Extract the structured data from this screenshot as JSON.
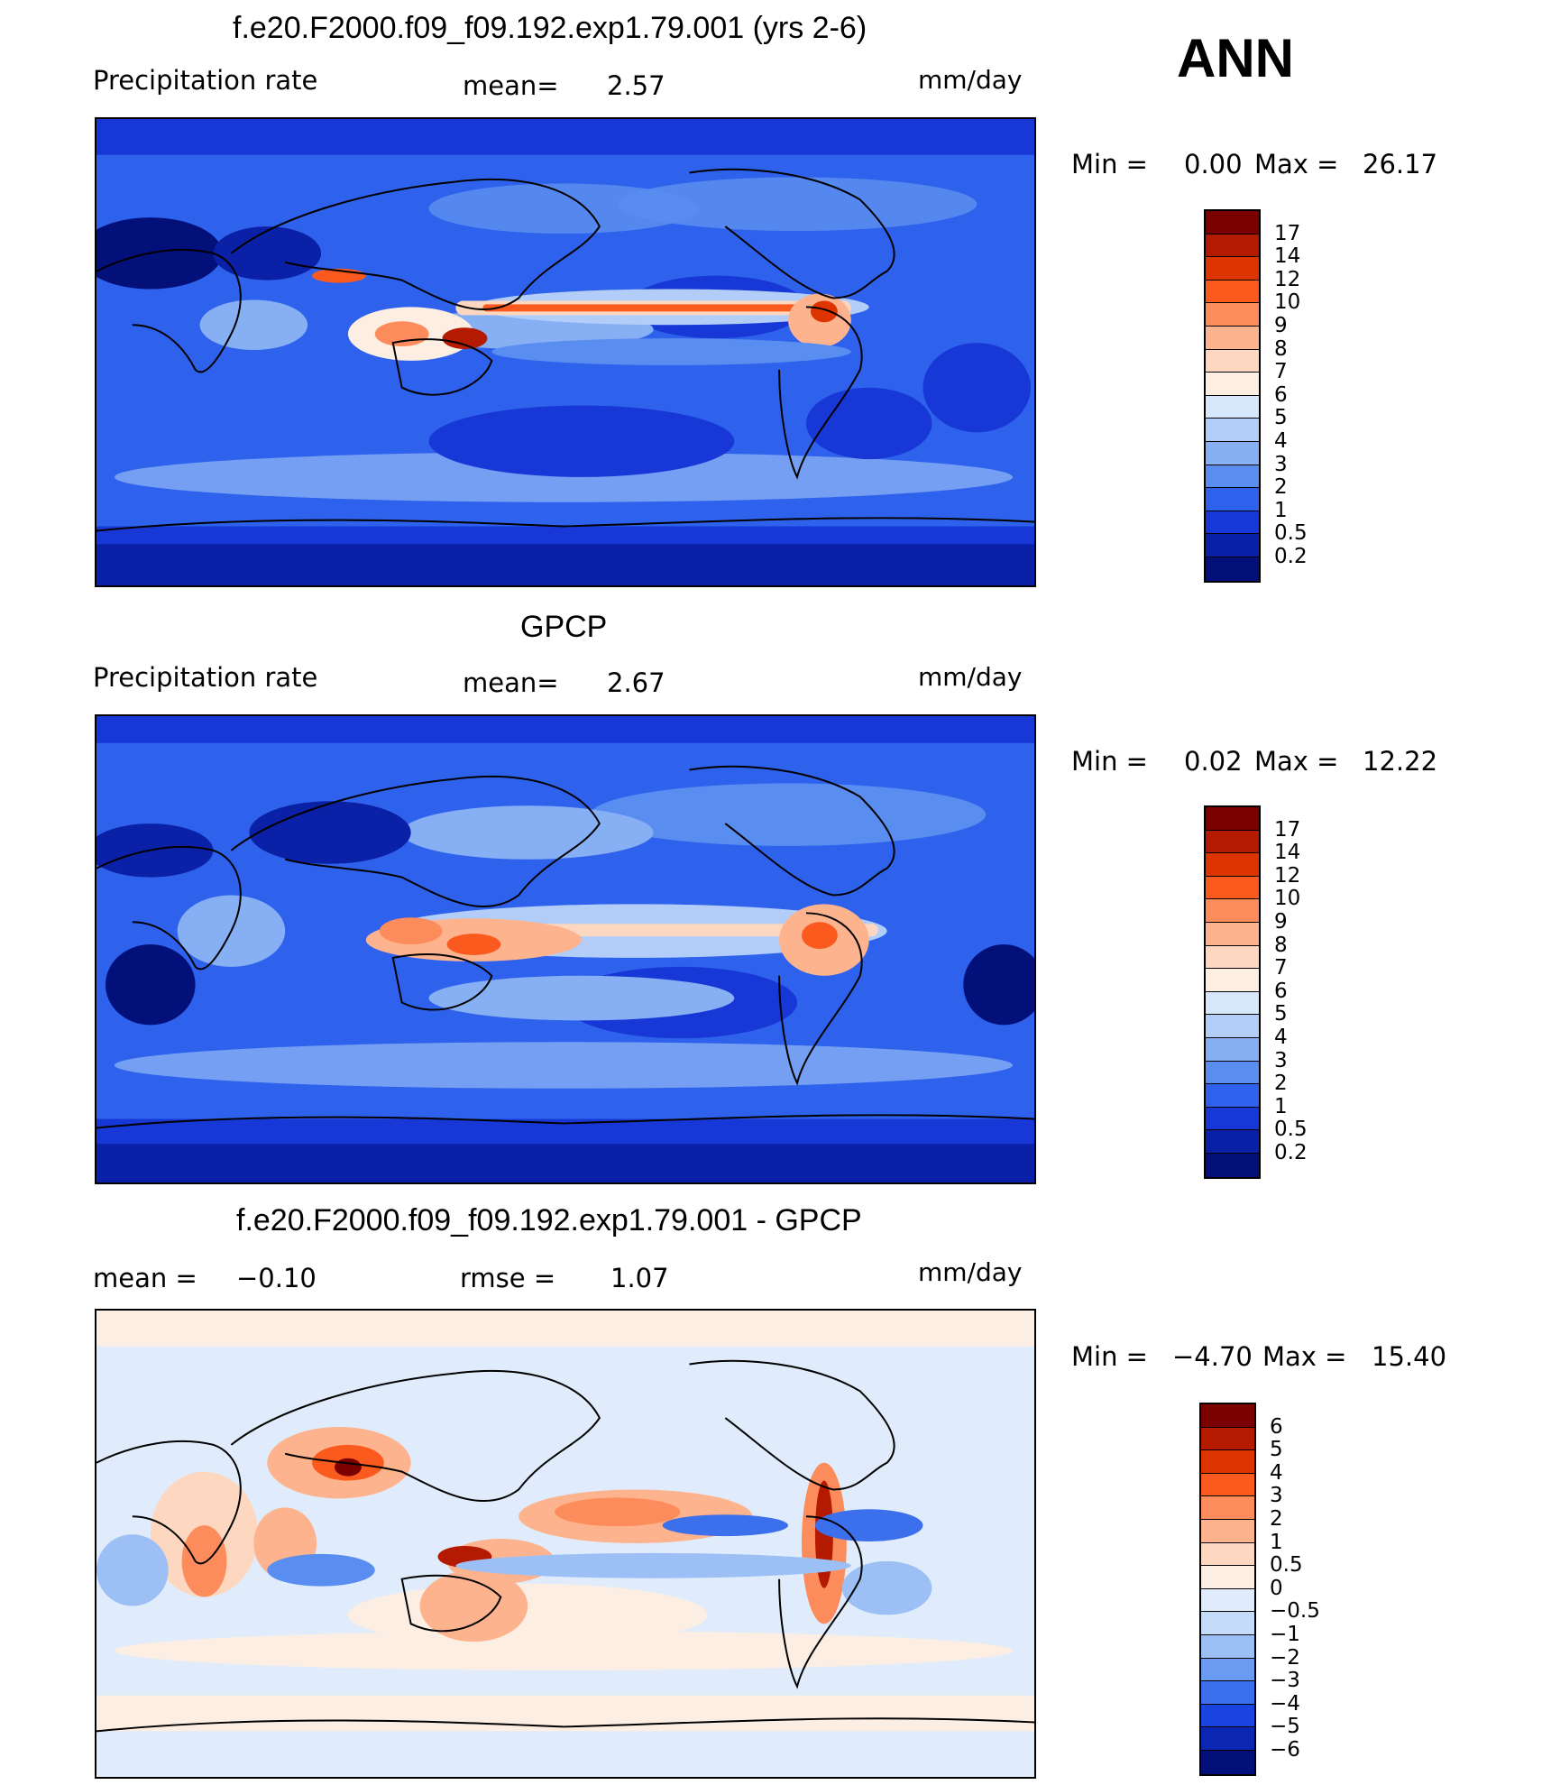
{
  "season": "ANN",
  "panels": [
    {
      "title": "f.e20.F2000.f09_f09.192.exp1.79.001 (yrs 2-6)",
      "left_label": "Precipitation  rate",
      "center_label": "mean=",
      "center_value": "2.57",
      "units": "mm/day",
      "min_label": "Min  =",
      "min_value": "0.00",
      "max_label": "Max  =",
      "max_value": "26.17",
      "levels": [
        "17",
        "14",
        "12",
        "10",
        "9",
        "8",
        "7",
        "6",
        "5",
        "4",
        "3",
        "2",
        "1",
        "0.5",
        "0.2"
      ]
    },
    {
      "title": "GPCP",
      "left_label": "Precipitation  rate",
      "center_label": "mean=",
      "center_value": "2.67",
      "units": "mm/day",
      "min_label": "Min  =",
      "min_value": "0.02",
      "max_label": "Max  =",
      "max_value": "12.22",
      "levels": [
        "17",
        "14",
        "12",
        "10",
        "9",
        "8",
        "7",
        "6",
        "5",
        "4",
        "3",
        "2",
        "1",
        "0.5",
        "0.2"
      ]
    },
    {
      "title": "f.e20.F2000.f09_f09.192.exp1.79.001 - GPCP",
      "left_label": "mean  =",
      "left_value": "−0.10",
      "center_label": "rmse  =",
      "center_value": "1.07",
      "units": "mm/day",
      "min_label": "Min  =",
      "min_value": "−4.70",
      "max_label": "Max  =",
      "max_value": "15.40",
      "levels": [
        "6",
        "5",
        "4",
        "3",
        "2",
        "1",
        "0.5",
        "0",
        "−0.5",
        "−1",
        "−2",
        "−3",
        "−4",
        "−5",
        "−6"
      ]
    }
  ],
  "colors": {
    "precip_scale": [
      "#7b0000",
      "#b31a00",
      "#de3500",
      "#fb5a1e",
      "#fd8c5c",
      "#fdb38e",
      "#fdd7bf",
      "#fdeee3",
      "#d6e6fb",
      "#b2cef8",
      "#86aff4",
      "#5a8df0",
      "#2f62ec",
      "#1738d6",
      "#0a20a6",
      "#03107a"
    ],
    "diff_scale": [
      "#7b0000",
      "#b31a00",
      "#de3500",
      "#fb5a1e",
      "#fd8c5c",
      "#fdb38e",
      "#fdd7bf",
      "#fdeee3",
      "#e0ecfb",
      "#c4dbf9",
      "#9cc0f5",
      "#6a9bf0",
      "#3c6fec",
      "#1a44e0",
      "#0b26b0",
      "#03107a"
    ]
  }
}
